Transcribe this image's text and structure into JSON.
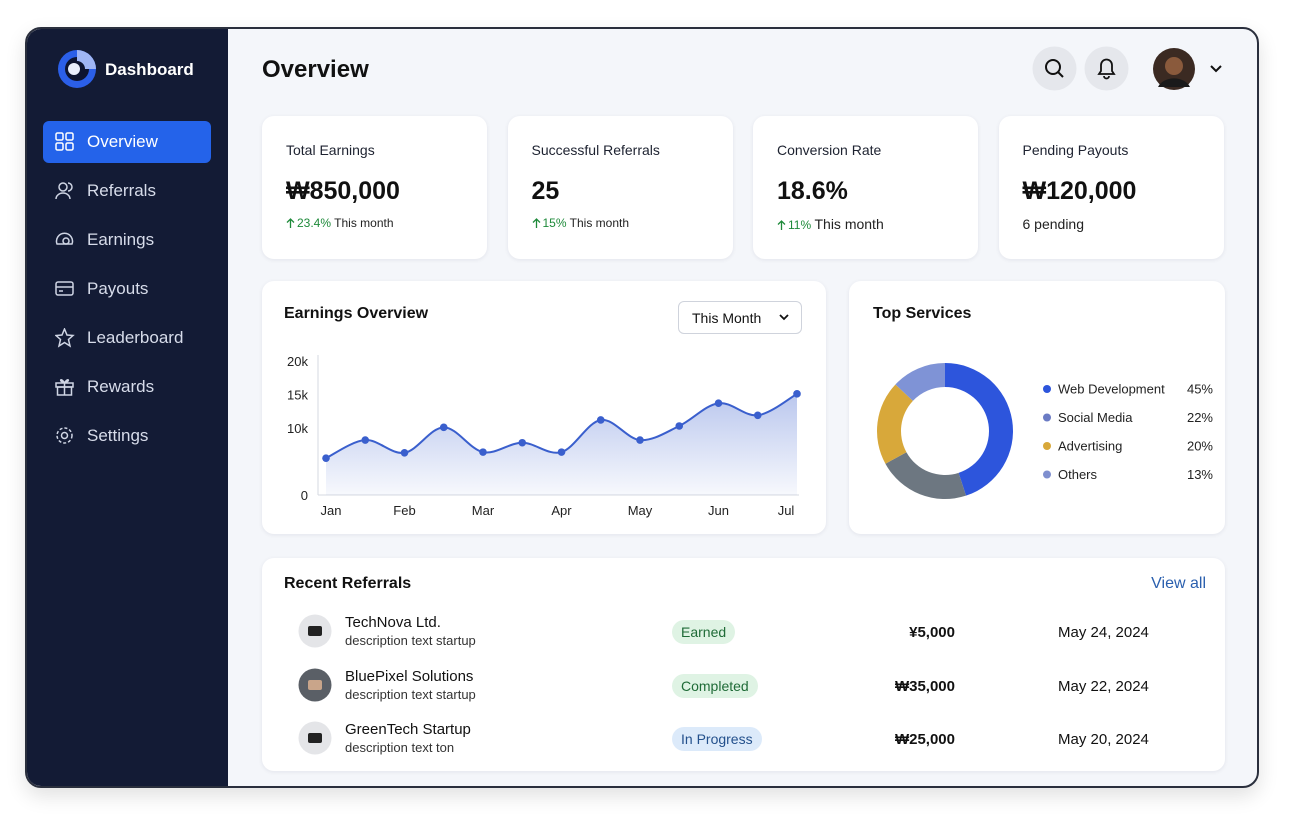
{
  "sidebar": {
    "brand": "Dashboard",
    "nav": [
      "Overview",
      "Referrals",
      "Earnings",
      "Payouts",
      "Leaderboard",
      "Rewards",
      "Settings"
    ],
    "active": 0
  },
  "header": {
    "title": "Overview"
  },
  "stats": [
    {
      "label": "Total Earnings",
      "value": "₩850,000",
      "change": "23.4%",
      "note": "This month"
    },
    {
      "label": "Successful Referrals",
      "value": "25",
      "change": "15%",
      "note": "This month"
    },
    {
      "label": "Conversion Rate",
      "value": "18.6%",
      "change": "11%",
      "note": "This month"
    },
    {
      "label": "Pending Payouts",
      "value": "₩120,000",
      "note": "6 pending"
    }
  ],
  "chart_data": [
    {
      "type": "line",
      "title": "Earnings Overview",
      "filter": "This Month",
      "categories": [
        "Jan",
        null,
        "Feb",
        null,
        "Mar",
        null,
        "Apr",
        null,
        "May",
        null,
        "Jun",
        null,
        "Jul"
      ],
      "series": [
        {
          "color": "#3a5fcd",
          "values": [
            5500,
            8200,
            6300,
            10100,
            6400,
            7800,
            6400,
            11200,
            8200,
            10300,
            13700,
            11900,
            15100
          ]
        }
      ],
      "ylim": [
        0,
        20000
      ],
      "yticks": [
        0,
        {
          "value": 10000,
          "label": "10k"
        },
        {
          "value": 15000,
          "label": "15k"
        },
        {
          "value": 20000,
          "label": "20k"
        }
      ],
      "area": true,
      "grid": false
    },
    {
      "type": "pie",
      "title": "Top Services",
      "categories": [
        "Web Development",
        "Social Media",
        "Advertising",
        "Others"
      ],
      "values": [
        45,
        22,
        20,
        13
      ],
      "value_labels": [
        "45%",
        "22%",
        "20%",
        "13%"
      ],
      "colors": [
        "#2d55dc",
        "#6d7781",
        "#d8a83a",
        "#7f93d6"
      ],
      "legend_colors": [
        "#2d55dc",
        "#6b7bc4",
        "#d8a83a",
        "#7f8fcf"
      ],
      "donut": true
    }
  ],
  "referrals": {
    "title": "Recent Referrals",
    "view_all": "View all",
    "rows": [
      {
        "name": "TechNova Ltd.",
        "description": "description text startup",
        "status": "Earned",
        "amount": "¥5,000",
        "date": "May 24, 2024"
      },
      {
        "name": "BluePixel Solutions",
        "description": "description text startup",
        "status": "Completed",
        "amount": "₩35,000",
        "date": "May 22, 2024"
      },
      {
        "name": "GreenTech Startup",
        "description": "description text ton",
        "status": "In Progress",
        "amount": "₩25,000",
        "date": "May 20, 2024"
      }
    ]
  }
}
